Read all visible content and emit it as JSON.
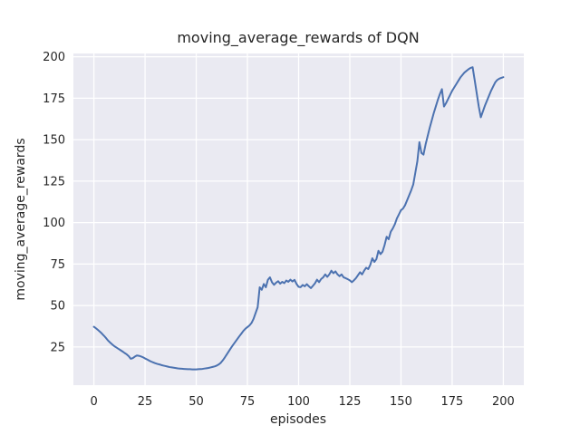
{
  "chart_data": {
    "type": "line",
    "title": "moving_average_rewards of DQN",
    "xlabel": "episodes",
    "ylabel": "moving_average_rewards",
    "xlim": [
      -10,
      210
    ],
    "ylim": [
      2,
      202
    ],
    "xticks": [
      0,
      25,
      50,
      75,
      100,
      125,
      150,
      175,
      200
    ],
    "yticks": [
      25,
      50,
      75,
      100,
      125,
      150,
      175,
      200
    ],
    "grid": true,
    "legend": "none",
    "colors": {
      "line": "#4C72B0",
      "axes_background": "#EAEAF2",
      "grid": "#FFFFFF",
      "figure_background": "#FFFFFF",
      "text": "#262626"
    },
    "series": [
      {
        "name": "moving_average_rewards",
        "x_start": 0,
        "x_step": 1,
        "values": [
          37.2,
          36.3,
          35.3,
          34.2,
          33.0,
          31.7,
          30.3,
          28.8,
          27.6,
          26.5,
          25.5,
          24.7,
          23.9,
          23.1,
          22.3,
          21.4,
          20.6,
          19.5,
          17.9,
          18.3,
          19.2,
          19.9,
          19.7,
          19.3,
          18.8,
          18.1,
          17.5,
          16.8,
          16.2,
          15.7,
          15.2,
          14.8,
          14.5,
          14.1,
          13.8,
          13.5,
          13.2,
          12.9,
          12.7,
          12.5,
          12.3,
          12.1,
          12.0,
          11.9,
          11.8,
          11.7,
          11.6,
          11.6,
          11.5,
          11.5,
          11.5,
          11.6,
          11.7,
          11.8,
          12.0,
          12.2,
          12.4,
          12.7,
          13.0,
          13.3,
          13.8,
          14.5,
          15.5,
          17.0,
          18.8,
          20.7,
          22.6,
          24.5,
          26.3,
          28.0,
          29.7,
          31.4,
          33.0,
          34.7,
          36.0,
          37.0,
          38.0,
          39.5,
          42.0,
          45.5,
          49.0,
          61.0,
          59.5,
          63.0,
          61.0,
          65.5,
          67.0,
          64.0,
          62.5,
          63.8,
          64.7,
          63.2,
          64.3,
          63.5,
          65.1,
          64.3,
          65.6,
          64.5,
          65.5,
          63.0,
          61.3,
          61.1,
          62.4,
          61.6,
          62.9,
          61.6,
          60.5,
          61.9,
          63.4,
          65.6,
          64.1,
          66.0,
          67.0,
          68.8,
          67.3,
          68.8,
          71.0,
          69.5,
          70.6,
          68.8,
          67.7,
          68.8,
          67.0,
          66.5,
          65.9,
          65.2,
          64.1,
          65.2,
          66.5,
          68.3,
          70.1,
          68.8,
          71.0,
          72.8,
          72.0,
          74.5,
          78.5,
          76.3,
          78.0,
          83.0,
          81.0,
          82.5,
          86.5,
          91.5,
          90.0,
          94.5,
          96.5,
          99.0,
          102.5,
          105.0,
          107.5,
          108.5,
          110.5,
          113.5,
          116.5,
          119.5,
          123.0,
          130.0,
          137.0,
          148.5,
          142.0,
          141.0,
          147.0,
          152.0,
          157.0,
          161.5,
          166.0,
          170.0,
          174.0,
          177.5,
          180.5,
          170.0,
          172.0,
          174.5,
          177.0,
          179.5,
          181.5,
          183.5,
          185.5,
          187.5,
          189.0,
          190.5,
          191.5,
          192.5,
          193.3,
          193.7,
          186.0,
          178.0,
          170.0,
          163.5,
          167.0,
          170.5,
          173.5,
          176.5,
          179.5,
          182.0,
          184.5,
          186.0,
          186.8,
          187.3,
          187.7
        ]
      }
    ]
  }
}
